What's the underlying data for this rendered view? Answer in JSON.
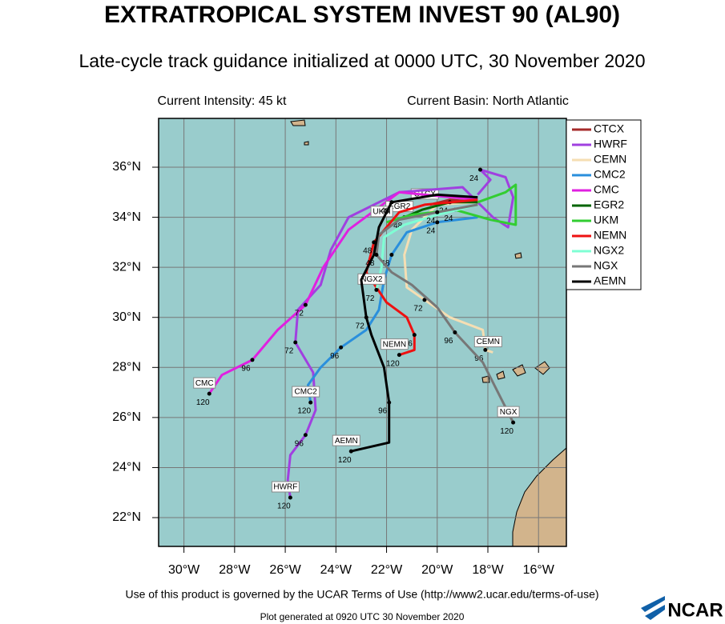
{
  "chart_data": {
    "type": "line",
    "title": "EXTRATROPICAL SYSTEM INVEST 90 (AL90)",
    "subtitle": "Late-cycle track guidance initialized at 0000 UTC, 30 November 2020",
    "intensity": "Current Intensity: 45 kt",
    "basin": "Current Basin: North Atlantic",
    "terms": "Use of this product is governed by the UCAR Terms of Use (http://www2.ucar.edu/terms-of-use)",
    "generated": "Plot generated at 0920 UTC  30 November 2020",
    "logo": "NCAR",
    "xlim": [
      -31,
      -14.9
    ],
    "ylim": [
      20.85,
      37.95
    ],
    "grid": true,
    "legend": "right",
    "xticks": [
      {
        "value": -30,
        "label": "30°W"
      },
      {
        "value": -28,
        "label": "28°W"
      },
      {
        "value": -26,
        "label": "26°W"
      },
      {
        "value": -24,
        "label": "24°W"
      },
      {
        "value": -22,
        "label": "22°W"
      },
      {
        "value": -20,
        "label": "20°W"
      },
      {
        "value": -18,
        "label": "18°W"
      },
      {
        "value": -16,
        "label": "16°W"
      }
    ],
    "yticks": [
      {
        "value": 22,
        "label": "22°N"
      },
      {
        "value": 24,
        "label": "24°N"
      },
      {
        "value": 26,
        "label": "26°N"
      },
      {
        "value": 28,
        "label": "28°N"
      },
      {
        "value": 30,
        "label": "30°N"
      },
      {
        "value": 32,
        "label": "32°N"
      },
      {
        "value": 34,
        "label": "34°N"
      },
      {
        "value": 36,
        "label": "36°N"
      }
    ],
    "series": [
      {
        "name": "CTCX",
        "color": "#a52a2a",
        "lon": [
          -18.4,
          -19.5,
          -20.3
        ],
        "lat": [
          34.6,
          34.7,
          34.5
        ],
        "hours": [
          null,
          null,
          null
        ]
      },
      {
        "name": "HWRF",
        "color": "#a040e0",
        "lon": [
          -18.4,
          -17.9,
          -18.3,
          -17.3,
          -17.0,
          -17.2,
          -17.8,
          -19.0,
          -21.5,
          -23.5,
          -24.2,
          -24.6,
          -25.5,
          -25.6,
          -24.9,
          -24.8,
          -25.2,
          -25.8,
          -25.9,
          -25.8
        ],
        "lat": [
          34.9,
          35.5,
          35.9,
          35.6,
          34.8,
          33.6,
          34.0,
          35.2,
          35.0,
          34.0,
          32.7,
          31.3,
          30.3,
          29.0,
          27.8,
          26.3,
          25.3,
          24.5,
          23.5,
          22.8
        ],
        "hours": [
          null,
          null,
          "24",
          null,
          null,
          null,
          null,
          null,
          null,
          null,
          null,
          null,
          null,
          "72",
          null,
          null,
          "96",
          null,
          null,
          "120"
        ]
      },
      {
        "name": "CEMN",
        "color": "#f5deb3",
        "lon": [
          -18.4,
          -20.0,
          -21.0,
          -21.3,
          -21.2,
          -20.5,
          -19.5,
          -18.2,
          -18.1,
          -17.8
        ],
        "lat": [
          34.6,
          34.5,
          33.5,
          32.5,
          31.2,
          30.7,
          30.0,
          29.5,
          28.7,
          28.6
        ],
        "hours": [
          null,
          null,
          null,
          null,
          null,
          "72",
          null,
          null,
          "96",
          null
        ]
      },
      {
        "name": "CMC2",
        "color": "#2a8fdc",
        "lon": [
          -18.4,
          -20.0,
          -21.2,
          -21.8,
          -22.1,
          -22.3,
          -22.8,
          -23.8,
          -24.6,
          -25.1,
          -25.0
        ],
        "lat": [
          34.0,
          33.8,
          33.4,
          32.5,
          31.5,
          30.3,
          29.5,
          28.8,
          28.0,
          27.3,
          26.6
        ],
        "hours": [
          null,
          "24",
          null,
          "48",
          null,
          null,
          null,
          "96",
          null,
          null,
          "120"
        ]
      },
      {
        "name": "CMC",
        "color": "#e020e0",
        "lon": [
          -18.4,
          -21.5,
          -23.5,
          -24.5,
          -25.2,
          -26.3,
          -27.3,
          -28.5,
          -29.0
        ],
        "lat": [
          34.7,
          35.0,
          33.5,
          32.0,
          30.5,
          29.5,
          28.3,
          27.7,
          26.95
        ],
        "hours": [
          null,
          null,
          null,
          null,
          "72",
          null,
          "96",
          null,
          "120"
        ]
      },
      {
        "name": "EGR2",
        "color": "#006400",
        "lon": [
          -18.4,
          -19.5,
          -20.6,
          -21.3
        ],
        "lat": [
          34.6,
          34.6,
          34.3,
          34.0
        ],
        "hours": [
          null,
          "24",
          null,
          "48"
        ]
      },
      {
        "name": "UKM",
        "color": "#32cd32",
        "lon": [
          -18.4,
          -17.3,
          -16.9,
          -16.9,
          -17.9,
          -19.3,
          -21.0,
          -22.0
        ],
        "lat": [
          34.6,
          35.0,
          35.3,
          33.7,
          33.9,
          34.3,
          34.1,
          33.8
        ],
        "hours": [
          null,
          null,
          null,
          null,
          null,
          "24",
          null,
          null
        ]
      },
      {
        "name": "NEMN",
        "color": "#ee1111",
        "lon": [
          -18.4,
          -20.5,
          -21.5,
          -22.5,
          -22.8,
          -22.0,
          -21.2,
          -20.9,
          -20.9,
          -21.5
        ],
        "lat": [
          34.7,
          34.5,
          34.2,
          33.0,
          31.8,
          30.6,
          30.0,
          29.3,
          28.7,
          28.5
        ],
        "hours": [
          null,
          null,
          null,
          "48",
          null,
          null,
          null,
          "96",
          null,
          "120"
        ]
      },
      {
        "name": "NGX2",
        "color": "#7fffd4",
        "lon": [
          -18.4,
          -20.0,
          -21.3,
          -22.1,
          -22.2,
          -22.4
        ],
        "lat": [
          34.5,
          34.1,
          33.7,
          33.2,
          32.0,
          31.1
        ],
        "hours": [
          null,
          null,
          null,
          null,
          null,
          "72"
        ]
      },
      {
        "name": "NGX",
        "color": "#777777",
        "lon": [
          -18.4,
          -20.0,
          -21.5,
          -22.3,
          -22.4,
          -21.8,
          -21.0,
          -20.0,
          -19.3,
          -18.2,
          -17.0
        ],
        "lat": [
          34.5,
          34.2,
          33.9,
          33.3,
          32.5,
          31.8,
          31.3,
          30.4,
          29.4,
          28.2,
          25.8
        ],
        "hours": [
          null,
          "24",
          null,
          null,
          "48",
          null,
          null,
          null,
          "96",
          null,
          "120"
        ]
      },
      {
        "name": "AEMN",
        "color": "#000000",
        "lon": [
          -18.4,
          -20.0,
          -21.8,
          -22.3,
          -22.5,
          -23.0,
          -22.8,
          -22.6,
          -22.1,
          -21.9,
          -21.9,
          -23.4
        ],
        "lat": [
          34.8,
          34.9,
          34.6,
          33.6,
          32.5,
          31.5,
          30.0,
          29.3,
          28.0,
          26.6,
          25.0,
          24.65
        ],
        "hours": [
          null,
          null,
          "48",
          null,
          null,
          null,
          "72",
          null,
          null,
          "96",
          null,
          "120"
        ]
      }
    ]
  }
}
